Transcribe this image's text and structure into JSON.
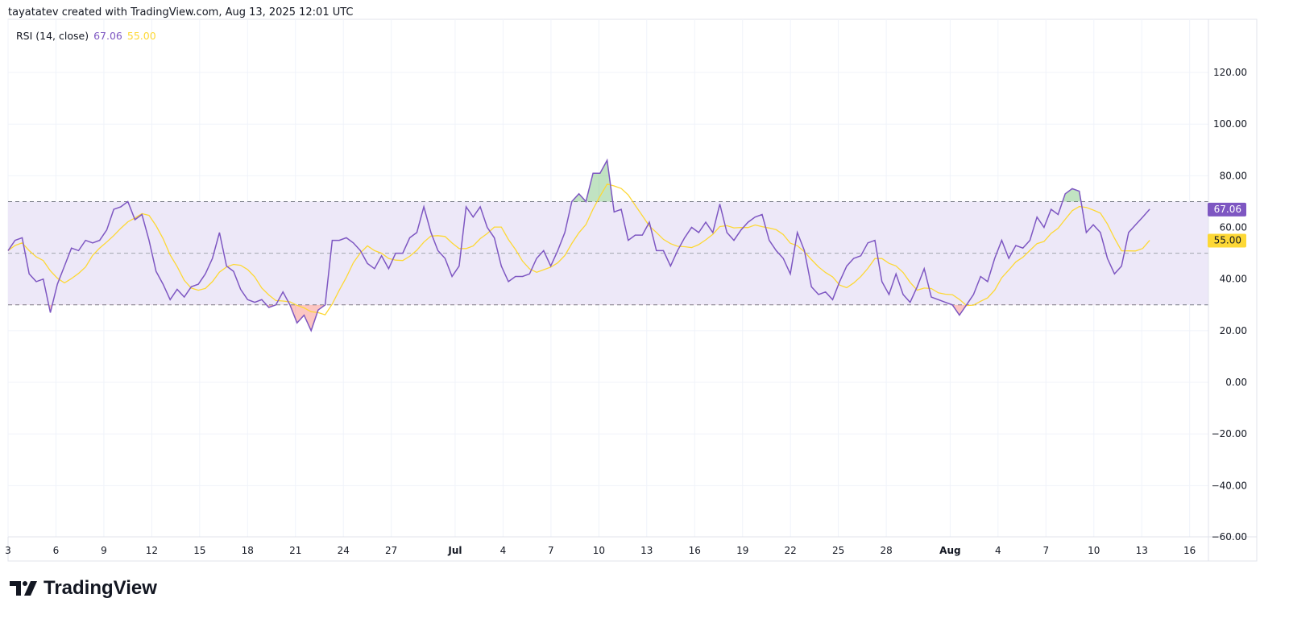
{
  "header": {
    "attribution": "tayatatev created with TradingView.com, Aug 13, 2025 12:01 UTC"
  },
  "legend": {
    "label": "RSI (14, close)",
    "rsi_value": "67.06",
    "ma_value": "55.00"
  },
  "price_axis": {
    "current_rsi_tag": "67.06",
    "current_ma_tag": "55.00"
  },
  "logo": {
    "text": "TradingView"
  },
  "colors": {
    "rsi": "#7e57c2",
    "ma": "#fdd835",
    "band": "#ede8f8",
    "overbought_fill": "#4caf50",
    "oversold_fill": "#f44336"
  },
  "chart_data": {
    "type": "line",
    "title": "RSI (14, close)",
    "ylim": [
      -60,
      130
    ],
    "yticks": [
      120,
      100,
      80,
      60,
      40,
      20,
      0,
      -20,
      -40,
      -60
    ],
    "ytick_labels": [
      "120.00",
      "100.00",
      "80.00",
      "60.00",
      "40.00",
      "20.00",
      "0.00",
      "−20.00",
      "−40.00",
      "−60.00"
    ],
    "bands": {
      "upper": 70,
      "middle": 50,
      "lower": 30
    },
    "x_range_days": [
      0,
      71.5
    ],
    "xticks": [
      {
        "day": 0,
        "label": "3"
      },
      {
        "day": 3,
        "label": "6"
      },
      {
        "day": 6,
        "label": "9"
      },
      {
        "day": 9,
        "label": "12"
      },
      {
        "day": 12,
        "label": "15"
      },
      {
        "day": 15,
        "label": "18"
      },
      {
        "day": 18,
        "label": "21"
      },
      {
        "day": 21,
        "label": "24"
      },
      {
        "day": 24,
        "label": "27"
      },
      {
        "day": 28,
        "label": "Jul",
        "bold": true
      },
      {
        "day": 31,
        "label": "4"
      },
      {
        "day": 34,
        "label": "7"
      },
      {
        "day": 37,
        "label": "10"
      },
      {
        "day": 40,
        "label": "13"
      },
      {
        "day": 43,
        "label": "16"
      },
      {
        "day": 46,
        "label": "19"
      },
      {
        "day": 49,
        "label": "22"
      },
      {
        "day": 52,
        "label": "25"
      },
      {
        "day": 55,
        "label": "28"
      },
      {
        "day": 59,
        "label": "Aug",
        "bold": true
      },
      {
        "day": 62,
        "label": "4"
      },
      {
        "day": 65,
        "label": "7"
      },
      {
        "day": 68,
        "label": "10"
      },
      {
        "day": 71,
        "label": "13"
      },
      {
        "day": 74,
        "label": "16"
      }
    ],
    "ma_window": 6,
    "series": [
      {
        "name": "RSI",
        "values": [
          51,
          55,
          56,
          42,
          39,
          40,
          27,
          38,
          45,
          52,
          51,
          55,
          54,
          55,
          59,
          67,
          68,
          70,
          63,
          65,
          55,
          43,
          38,
          32,
          36,
          33,
          37,
          38,
          42,
          48,
          58,
          45,
          43,
          36,
          32,
          31,
          32,
          29,
          30,
          35,
          30,
          23,
          26,
          20,
          28,
          30,
          55,
          55,
          56,
          54,
          51,
          46,
          44,
          49,
          44,
          50,
          50,
          56,
          58,
          68,
          58,
          51,
          48,
          41,
          45,
          68,
          64,
          68,
          60,
          56,
          45,
          39,
          41,
          41,
          42,
          48,
          51,
          45,
          51,
          58,
          70,
          73,
          70,
          81,
          81,
          86,
          66,
          67,
          55,
          57,
          57,
          62,
          51,
          51,
          45,
          51,
          56,
          60,
          58,
          62,
          58,
          69,
          58,
          55,
          59,
          62,
          64,
          65,
          55,
          51,
          48,
          42,
          58,
          51,
          37,
          34,
          35,
          32,
          39,
          45,
          48,
          49,
          54,
          55,
          39,
          34,
          42,
          34,
          31,
          37,
          44,
          33,
          32,
          31,
          30,
          26,
          30,
          34,
          41,
          39,
          48,
          55,
          48,
          53,
          52,
          55,
          64,
          60,
          67,
          65,
          73,
          75,
          74,
          58,
          61,
          58,
          48,
          42,
          45,
          58,
          61,
          64,
          67.06
        ]
      },
      {
        "name": "RSI-based MA",
        "computed": "moving average of RSI",
        "last": 55.0
      }
    ]
  }
}
